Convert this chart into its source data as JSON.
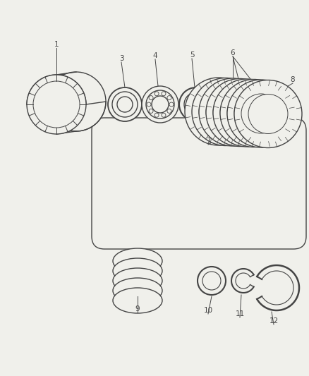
{
  "bg_color": "#f0f0eb",
  "line_color": "#444444",
  "line_width": 1.0,
  "callout_color": "#444444",
  "callout_fontsize": 7.5,
  "fig_width": 4.38,
  "fig_height": 5.33,
  "dpi": 100
}
